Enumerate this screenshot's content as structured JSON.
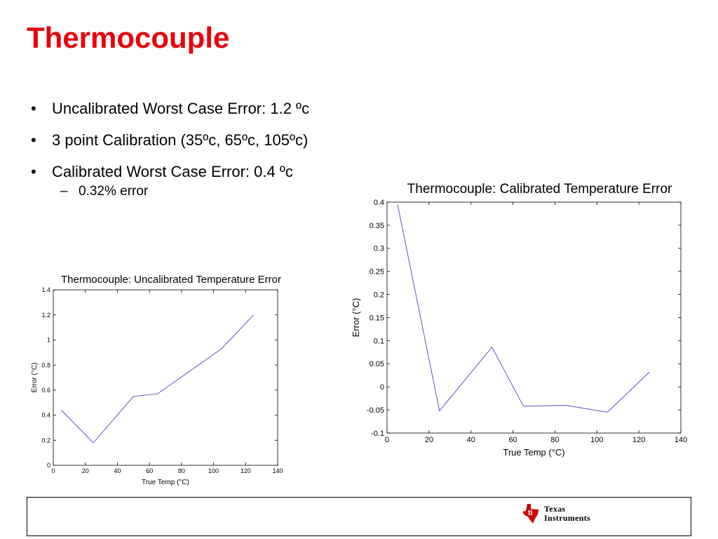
{
  "slide": {
    "title": "Thermocouple",
    "bullets": [
      {
        "text": "Uncalibrated Worst Case Error: 1.2 ºc"
      },
      {
        "text": "3 point Calibration (35ºc, 65ºc, 105ºc)"
      },
      {
        "text": "Calibrated Worst Case Error: 0.4 ºc",
        "sub": "0.32% error"
      }
    ]
  },
  "logo": {
    "line1": "Texas",
    "line2": "Instruments",
    "color": "#cc0000"
  },
  "chart_data": [
    {
      "type": "line",
      "title": "Thermocouple: Uncalibrated Temperature Error",
      "xlabel": "True Temp (°C)",
      "ylabel": "Error (°C)",
      "xlim": [
        0,
        140
      ],
      "ylim": [
        0,
        1.4
      ],
      "xticks": [
        "0",
        "20",
        "40",
        "60",
        "80",
        "100",
        "120",
        "140"
      ],
      "yticks": [
        "0",
        "0.2",
        "0.4",
        "0.6",
        "0.8",
        "1",
        "1.2",
        "1.4"
      ],
      "series": [
        {
          "color": "#5555bb",
          "x": [
            5,
            25,
            50,
            65,
            105,
            125
          ],
          "y": [
            0.44,
            0.18,
            0.55,
            0.57,
            0.93,
            1.2
          ]
        }
      ]
    },
    {
      "type": "line",
      "title": "Thermocouple: Calibrated Temperature Error",
      "xlabel": "True Temp (°C)",
      "ylabel": "Error (°C)",
      "xlim": [
        0,
        140
      ],
      "ylim": [
        -0.1,
        0.4
      ],
      "xticks": [
        "0",
        "20",
        "40",
        "60",
        "80",
        "100",
        "120",
        "140"
      ],
      "yticks": [
        "-0.1",
        "-0.05",
        "0",
        "0.05",
        "0.1",
        "0.15",
        "0.2",
        "0.25",
        "0.3",
        "0.35",
        "0.4"
      ],
      "series": [
        {
          "color": "#5555bb",
          "x": [
            5,
            25,
            50,
            65,
            85,
            105,
            125
          ],
          "y": [
            0.395,
            -0.052,
            0.086,
            -0.042,
            -0.04,
            -0.055,
            0.032
          ]
        }
      ]
    }
  ]
}
